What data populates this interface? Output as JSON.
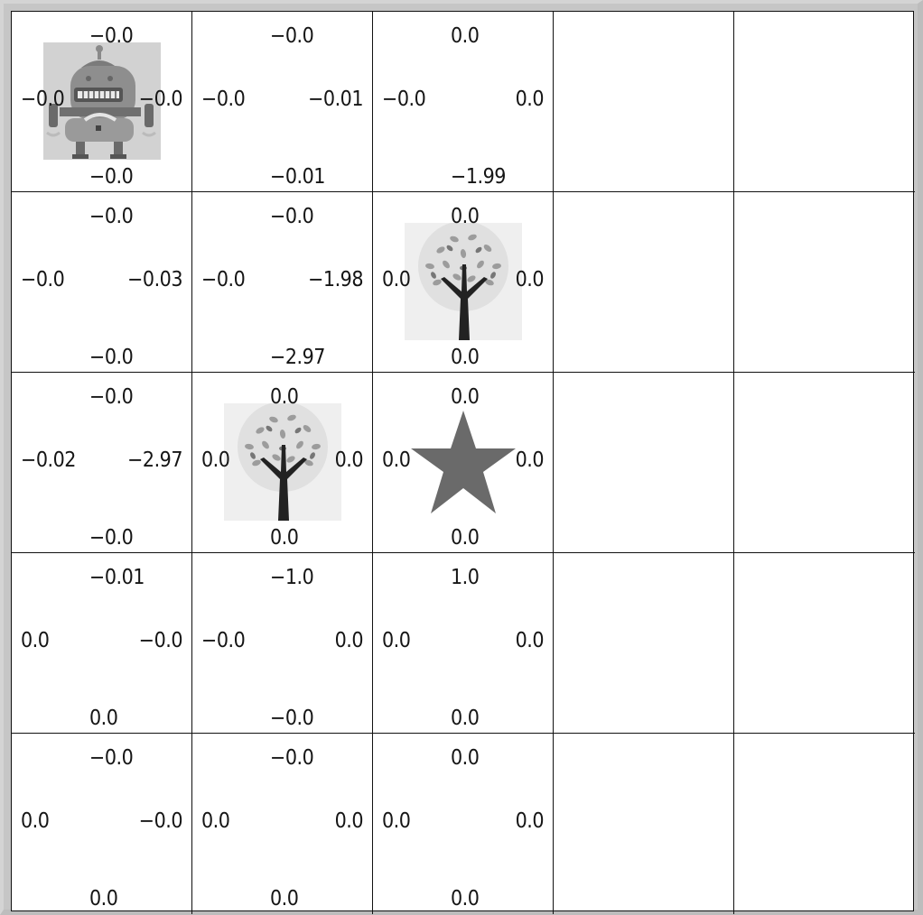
{
  "grid": {
    "rows": 5,
    "cols": 5,
    "cells": [
      [
        {
          "up": "−0.0",
          "down": "−0.0",
          "left": "−0.0",
          "right": "−0.0",
          "sprite": "robot-agent-icon"
        },
        {
          "up": "−0.0",
          "down": "−0.01",
          "left": "−0.0",
          "right": "−0.01",
          "sprite": ""
        },
        {
          "up": "0.0",
          "down": "−1.99",
          "left": "−0.0",
          "right": "0.0",
          "sprite": ""
        },
        {
          "up": "",
          "down": "",
          "left": "",
          "right": "",
          "sprite": ""
        },
        {
          "up": "",
          "down": "",
          "left": "",
          "right": "",
          "sprite": ""
        }
      ],
      [
        {
          "up": "−0.0",
          "down": "−0.0",
          "left": "−0.0",
          "right": "−0.03",
          "sprite": ""
        },
        {
          "up": "−0.0",
          "down": "−2.97",
          "left": "−0.0",
          "right": "−1.98",
          "sprite": ""
        },
        {
          "up": "0.0",
          "down": "0.0",
          "left": "0.0",
          "right": "0.0",
          "sprite": "tree-obstacle-icon"
        },
        {
          "up": "",
          "down": "",
          "left": "",
          "right": "",
          "sprite": ""
        },
        {
          "up": "",
          "down": "",
          "left": "",
          "right": "",
          "sprite": ""
        }
      ],
      [
        {
          "up": "−0.0",
          "down": "−0.0",
          "left": "−0.02",
          "right": "−2.97",
          "sprite": ""
        },
        {
          "up": "0.0",
          "down": "0.0",
          "left": "0.0",
          "right": "0.0",
          "sprite": "tree-obstacle-icon"
        },
        {
          "up": "0.0",
          "down": "0.0",
          "left": "0.0",
          "right": "0.0",
          "sprite": "star-goal-icon"
        },
        {
          "up": "",
          "down": "",
          "left": "",
          "right": "",
          "sprite": ""
        },
        {
          "up": "",
          "down": "",
          "left": "",
          "right": "",
          "sprite": ""
        }
      ],
      [
        {
          "up": "−0.01",
          "down": "0.0",
          "left": "0.0",
          "right": "−0.0",
          "sprite": ""
        },
        {
          "up": "−1.0",
          "down": "−0.0",
          "left": "−0.0",
          "right": "0.0",
          "sprite": ""
        },
        {
          "up": "1.0",
          "down": "0.0",
          "left": "0.0",
          "right": "0.0",
          "sprite": ""
        },
        {
          "up": "",
          "down": "",
          "left": "",
          "right": "",
          "sprite": ""
        },
        {
          "up": "",
          "down": "",
          "left": "",
          "right": "",
          "sprite": ""
        }
      ],
      [
        {
          "up": "−0.0",
          "down": "0.0",
          "left": "0.0",
          "right": "−0.0",
          "sprite": ""
        },
        {
          "up": "−0.0",
          "down": "0.0",
          "left": "0.0",
          "right": "0.0",
          "sprite": ""
        },
        {
          "up": "0.0",
          "down": "0.0",
          "left": "0.0",
          "right": "0.0",
          "sprite": ""
        },
        {
          "up": "",
          "down": "",
          "left": "",
          "right": "",
          "sprite": ""
        },
        {
          "up": "",
          "down": "",
          "left": "",
          "right": "",
          "sprite": ""
        }
      ]
    ]
  },
  "colors": {
    "background": "#ffffff",
    "grid_line": "#111111",
    "sprite_bg": "#efefef",
    "star": "#6a6a6a"
  }
}
